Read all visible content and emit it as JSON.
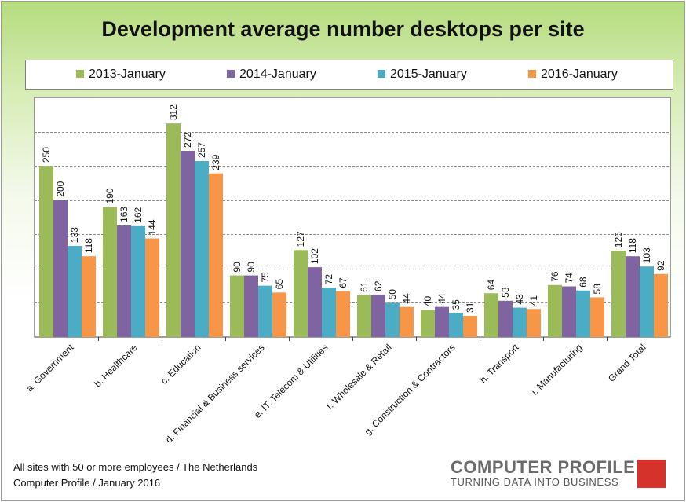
{
  "chart_data": {
    "type": "bar",
    "title": "Development average number desktops per site",
    "categories": [
      "a. Government",
      "b. Healthcare",
      "c. Education",
      "d. Financial & Business services",
      "e. IT, Telecom & Utilities",
      "f. Wholesale & Retail",
      "g. Construction & Contractors",
      "h. Transport",
      "i. Manufacturing",
      "Grand Total"
    ],
    "series": [
      {
        "name": "2013-January",
        "color": "#9bbb59",
        "values": [
          250,
          190,
          312,
          90,
          127,
          61,
          40,
          64,
          76,
          126
        ]
      },
      {
        "name": "2014-January",
        "color": "#8064a2",
        "values": [
          200,
          163,
          272,
          90,
          102,
          62,
          44,
          53,
          74,
          118
        ]
      },
      {
        "name": "2015-January",
        "color": "#4bacc6",
        "values": [
          133,
          162,
          257,
          75,
          72,
          50,
          35,
          43,
          68,
          103
        ]
      },
      {
        "name": "2016-January",
        "color": "#f79646",
        "values": [
          118,
          144,
          239,
          65,
          67,
          44,
          31,
          41,
          58,
          92
        ]
      }
    ],
    "ylim": [
      0,
      350
    ],
    "ytick_step": 50,
    "grid": true,
    "legend_position": "top"
  },
  "footnote": {
    "line1": "All sites with 50 or more employees / The Netherlands",
    "line2": "Computer Profile / January 2016"
  },
  "logo": {
    "name": "COMPUTER PROFILE",
    "tagline": "TURNING DATA INTO BUSINESS"
  }
}
